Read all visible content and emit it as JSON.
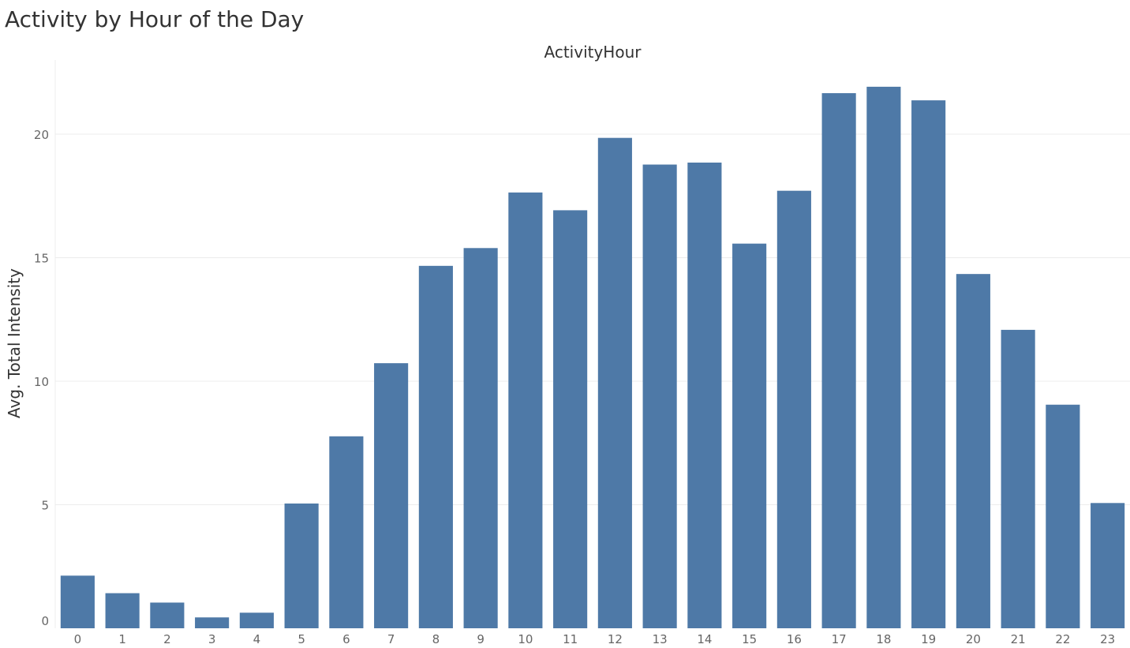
{
  "title": "Activity by Hour of the Day",
  "chart_data": {
    "type": "bar",
    "title": "Activity by Hour of the Day",
    "column_header": "ActivityHour",
    "xlabel": "",
    "ylabel": "Avg. Total Intensity",
    "categories": [
      "0",
      "1",
      "2",
      "3",
      "4",
      "5",
      "6",
      "7",
      "8",
      "9",
      "10",
      "11",
      "12",
      "13",
      "14",
      "15",
      "16",
      "17",
      "18",
      "19",
      "20",
      "21",
      "22",
      "23"
    ],
    "values": [
      2.13,
      1.42,
      1.04,
      0.44,
      0.63,
      5.05,
      7.77,
      10.73,
      14.67,
      15.39,
      17.64,
      16.92,
      19.85,
      18.77,
      18.85,
      15.57,
      17.71,
      21.66,
      21.92,
      21.37,
      14.34,
      12.08,
      9.05,
      5.07
    ],
    "ylim": [
      0,
      23
    ],
    "yticks": [
      0,
      5,
      10,
      15,
      20
    ],
    "grid": true,
    "bar_color": "#4e79a7"
  }
}
